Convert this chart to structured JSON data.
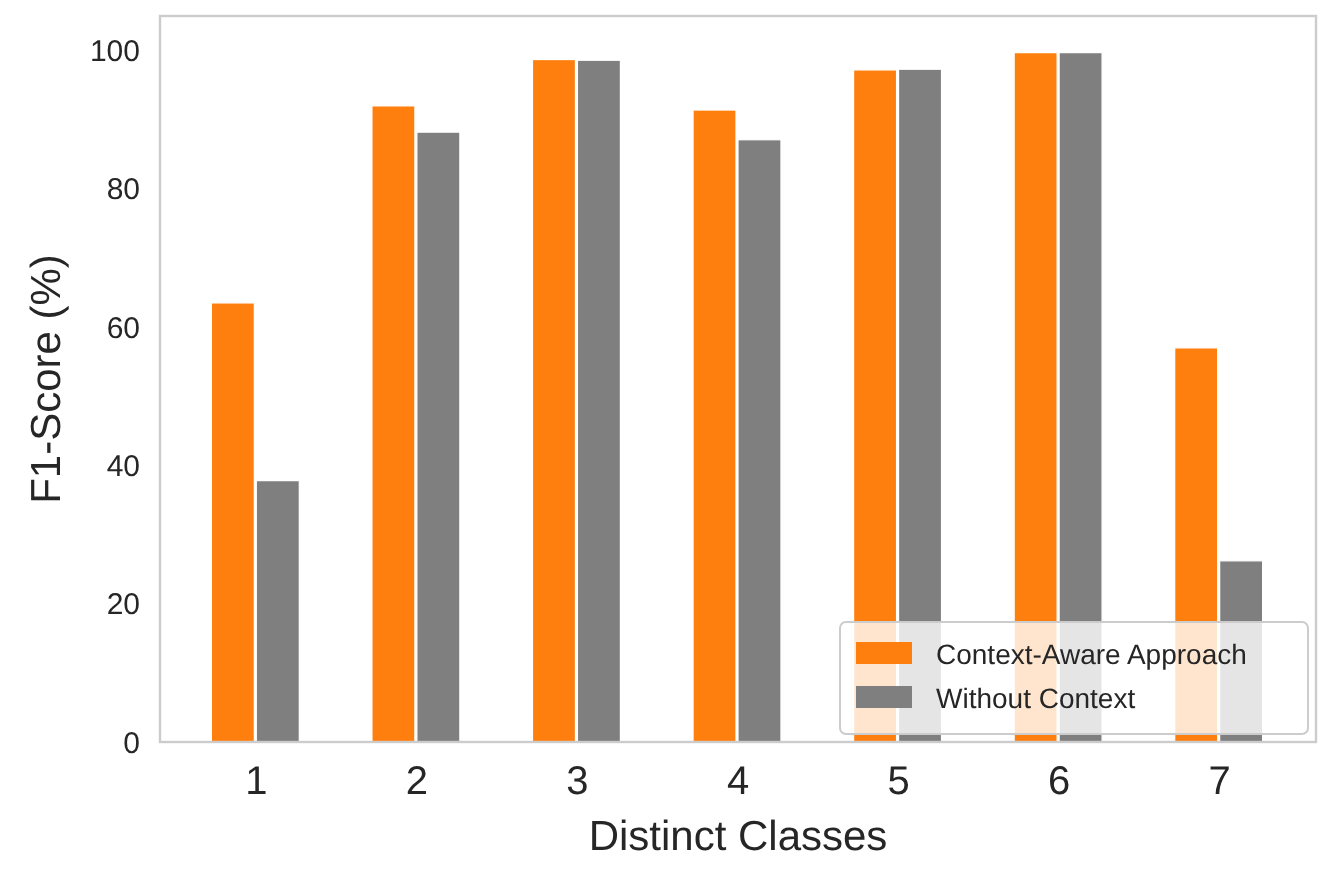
{
  "chart_data": {
    "type": "bar",
    "xlabel": "Distinct Classes",
    "ylabel": "F1-Score (%)",
    "categories": [
      "1",
      "2",
      "3",
      "4",
      "5",
      "6",
      "7"
    ],
    "series": [
      {
        "name": "Context-Aware Approach",
        "color": "#ff7f0e",
        "values": [
          63.5,
          92.0,
          98.7,
          91.4,
          97.2,
          99.7,
          57.0
        ]
      },
      {
        "name": "Without Context",
        "color": "#7f7f7f",
        "values": [
          37.8,
          88.2,
          98.6,
          87.1,
          97.3,
          99.7,
          26.2
        ]
      }
    ],
    "ylim": [
      0,
      105
    ],
    "yticks": [
      0,
      20,
      40,
      60,
      80,
      100
    ],
    "grid": false,
    "legend": "bottom right"
  }
}
